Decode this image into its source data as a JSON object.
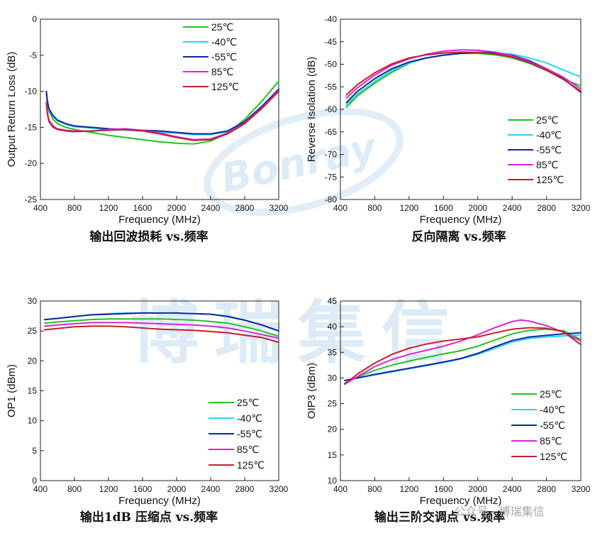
{
  "colors": {
    "25C": "#22c322",
    "-40C": "#28d4ef",
    "-55C": "#1226a2",
    "85C": "#d824d8",
    "125C": "#c81e2a",
    "watermark": "#2a87c9"
  },
  "watermark": {
    "logo_text": "Bonray",
    "big_text": "博瑞集信",
    "footer_text": "公众号 · 博瑞集信"
  },
  "chart_data": [
    {
      "type": "line",
      "caption": "输出回波损耗 vs.频率",
      "xlabel": "Frequency (MHz)",
      "ylabel": "Output Return Loss (dB)",
      "xlim": [
        400,
        3200
      ],
      "ylim": [
        -25,
        0
      ],
      "xticks": [
        400,
        800,
        1200,
        1600,
        2000,
        2400,
        2800,
        3200
      ],
      "yticks": [
        -25,
        -20,
        -15,
        -10,
        -5,
        0
      ],
      "legend_position": "top-right",
      "series": [
        {
          "name": "25℃",
          "color_key": "25C",
          "x": [
            470,
            480,
            500,
            550,
            600,
            700,
            800,
            1000,
            1200,
            1400,
            1600,
            1800,
            2000,
            2200,
            2400,
            2600,
            2800,
            3000,
            3200
          ],
          "y": [
            -10.2,
            -11.6,
            -12.8,
            -13.9,
            -14.5,
            -15.0,
            -15.3,
            -15.7,
            -16.1,
            -16.4,
            -16.7,
            -17.0,
            -17.2,
            -17.3,
            -16.9,
            -15.8,
            -13.9,
            -11.4,
            -8.6
          ]
        },
        {
          "name": "-40℃",
          "color_key": "-40C",
          "x": [
            470,
            480,
            500,
            550,
            600,
            700,
            800,
            1000,
            1200,
            1400,
            1600,
            1800,
            2000,
            2200,
            2400,
            2600,
            2800,
            3000,
            3200
          ],
          "y": [
            -10.0,
            -11.3,
            -12.5,
            -13.5,
            -14.1,
            -14.6,
            -14.9,
            -15.1,
            -15.3,
            -15.4,
            -15.5,
            -15.7,
            -15.8,
            -16.0,
            -16.0,
            -15.6,
            -14.3,
            -12.2,
            -9.8
          ]
        },
        {
          "name": "-55℃",
          "color_key": "-55C",
          "x": [
            470,
            480,
            500,
            550,
            600,
            700,
            800,
            1000,
            1200,
            1400,
            1600,
            1800,
            2000,
            2200,
            2400,
            2600,
            2800,
            3000,
            3200
          ],
          "y": [
            -10.0,
            -11.2,
            -12.4,
            -13.4,
            -14.0,
            -14.5,
            -14.8,
            -15.0,
            -15.2,
            -15.3,
            -15.4,
            -15.5,
            -15.7,
            -15.9,
            -15.9,
            -15.5,
            -14.2,
            -12.1,
            -9.7
          ]
        },
        {
          "name": "85℃",
          "color_key": "85C",
          "x": [
            470,
            480,
            500,
            550,
            600,
            700,
            800,
            1000,
            1200,
            1400,
            1600,
            1800,
            2000,
            2200,
            2400,
            2600,
            2800,
            3000,
            3200
          ],
          "y": [
            -11.5,
            -12.8,
            -14.0,
            -14.8,
            -15.2,
            -15.4,
            -15.5,
            -15.5,
            -15.3,
            -15.2,
            -15.4,
            -15.8,
            -16.3,
            -16.7,
            -16.6,
            -15.8,
            -14.4,
            -12.3,
            -9.9
          ]
        },
        {
          "name": "125℃",
          "color_key": "125C",
          "x": [
            470,
            480,
            500,
            550,
            600,
            700,
            800,
            1000,
            1200,
            1400,
            1600,
            1800,
            2000,
            2200,
            2400,
            2600,
            2800,
            3000,
            3200
          ],
          "y": [
            -11.7,
            -13.0,
            -14.2,
            -15.0,
            -15.3,
            -15.5,
            -15.6,
            -15.5,
            -15.4,
            -15.3,
            -15.5,
            -15.9,
            -16.4,
            -16.8,
            -16.7,
            -15.9,
            -14.5,
            -12.4,
            -10.0
          ]
        }
      ]
    },
    {
      "type": "line",
      "caption": "反向隔离 vs.频率",
      "xlabel": "Frequency (MHz)",
      "ylabel": "Reverse Isolation (dB)",
      "xlim": [
        400,
        3200
      ],
      "ylim": [
        -80,
        -40
      ],
      "xticks": [
        400,
        800,
        1200,
        1600,
        2000,
        2400,
        2800,
        3200
      ],
      "yticks": [
        -80,
        -75,
        -70,
        -65,
        -60,
        -55,
        -50,
        -45,
        -40
      ],
      "legend_position": "bottom-right",
      "series": [
        {
          "name": "25℃",
          "color_key": "25C",
          "x": [
            470,
            600,
            800,
            1000,
            1200,
            1400,
            1600,
            1800,
            2000,
            2200,
            2400,
            2600,
            2800,
            3000,
            3200
          ],
          "y": [
            -59.5,
            -57.0,
            -54.2,
            -51.8,
            -49.8,
            -48.6,
            -47.9,
            -47.6,
            -47.6,
            -47.9,
            -48.6,
            -49.8,
            -51.4,
            -53.3,
            -54.8
          ]
        },
        {
          "name": "-40℃",
          "color_key": "-40C",
          "x": [
            470,
            600,
            800,
            1000,
            1200,
            1400,
            1600,
            1800,
            2000,
            2200,
            2400,
            2600,
            2800,
            3000,
            3200
          ],
          "y": [
            -59.0,
            -56.6,
            -53.8,
            -51.4,
            -49.7,
            -48.6,
            -47.9,
            -47.5,
            -47.3,
            -47.4,
            -47.8,
            -48.6,
            -49.7,
            -51.3,
            -52.8
          ]
        },
        {
          "name": "-55℃",
          "color_key": "-55C",
          "x": [
            470,
            600,
            800,
            1000,
            1200,
            1400,
            1600,
            1800,
            2000,
            2200,
            2400,
            2600,
            2800,
            3000,
            3200
          ],
          "y": [
            -58.5,
            -56.0,
            -53.2,
            -51.0,
            -49.5,
            -48.6,
            -48.0,
            -47.6,
            -47.4,
            -47.5,
            -48.0,
            -49.2,
            -51.0,
            -53.3,
            -56.2
          ]
        },
        {
          "name": "85℃",
          "color_key": "85C",
          "x": [
            470,
            600,
            800,
            1000,
            1200,
            1400,
            1600,
            1800,
            2000,
            2200,
            2400,
            2600,
            2800,
            3000,
            3200
          ],
          "y": [
            -57.5,
            -55.2,
            -52.4,
            -50.2,
            -48.8,
            -47.8,
            -47.1,
            -46.8,
            -46.9,
            -47.3,
            -48.1,
            -49.4,
            -51.0,
            -52.9,
            -55.5
          ]
        },
        {
          "name": "125℃",
          "color_key": "125C",
          "x": [
            470,
            600,
            800,
            1000,
            1200,
            1400,
            1600,
            1800,
            2000,
            2200,
            2400,
            2600,
            2800,
            3000,
            3200
          ],
          "y": [
            -56.8,
            -54.5,
            -51.9,
            -49.9,
            -48.6,
            -47.9,
            -47.5,
            -47.3,
            -47.4,
            -47.7,
            -48.4,
            -49.6,
            -51.3,
            -53.4,
            -56.0
          ]
        }
      ]
    },
    {
      "type": "line",
      "caption": "输出1dB 压缩点 vs.频率",
      "xlabel": "Frequency (MHz)",
      "ylabel": "OP1 (dBm)",
      "xlim": [
        400,
        3200
      ],
      "ylim": [
        0,
        30
      ],
      "xticks": [
        400,
        800,
        1200,
        1600,
        2000,
        2400,
        2800,
        3200
      ],
      "yticks": [
        0,
        5,
        10,
        15,
        20,
        25,
        30
      ],
      "legend_position": "bottom-right",
      "series": [
        {
          "name": "25℃",
          "color_key": "25C",
          "x": [
            450,
            600,
            800,
            1000,
            1200,
            1400,
            1600,
            1800,
            2000,
            2200,
            2400,
            2600,
            2800,
            3000,
            3200
          ],
          "y": [
            26.3,
            26.5,
            26.7,
            26.9,
            27.0,
            27.0,
            27.0,
            27.0,
            26.9,
            26.8,
            26.6,
            26.3,
            25.7,
            25.0,
            24.1
          ]
        },
        {
          "name": "-40℃",
          "color_key": "-40C",
          "x": [
            450,
            600,
            800,
            1000,
            1200,
            1400,
            1600,
            1800,
            2000,
            2200,
            2400,
            2600,
            2800,
            3000,
            3200
          ],
          "y": [
            26.9,
            27.1,
            27.4,
            27.7,
            27.9,
            28.0,
            28.0,
            28.0,
            28.0,
            27.9,
            27.8,
            27.5,
            26.8,
            26.0,
            25.0
          ]
        },
        {
          "name": "-55℃",
          "color_key": "-55C",
          "x": [
            450,
            600,
            800,
            1000,
            1200,
            1400,
            1600,
            1800,
            2000,
            2200,
            2400,
            2600,
            2800,
            3000,
            3200
          ],
          "y": [
            26.9,
            27.1,
            27.4,
            27.7,
            27.8,
            27.9,
            28.0,
            28.0,
            28.0,
            27.9,
            27.8,
            27.4,
            26.8,
            26.0,
            25.0
          ]
        },
        {
          "name": "85℃",
          "color_key": "85C",
          "x": [
            450,
            600,
            800,
            1000,
            1200,
            1400,
            1600,
            1800,
            2000,
            2200,
            2400,
            2600,
            2800,
            3000,
            3200
          ],
          "y": [
            25.8,
            26.0,
            26.2,
            26.4,
            26.4,
            26.4,
            26.3,
            26.2,
            26.1,
            26.0,
            25.8,
            25.5,
            25.0,
            24.4,
            23.8
          ]
        },
        {
          "name": "125℃",
          "color_key": "125C",
          "x": [
            450,
            600,
            800,
            1000,
            1200,
            1400,
            1600,
            1800,
            2000,
            2200,
            2400,
            2600,
            2800,
            3000,
            3200
          ],
          "y": [
            25.2,
            25.4,
            25.7,
            25.8,
            25.8,
            25.7,
            25.5,
            25.3,
            25.2,
            25.1,
            24.9,
            24.7,
            24.3,
            23.9,
            23.1
          ]
        }
      ]
    },
    {
      "type": "line",
      "caption": "输出三阶交调点 vs.频率",
      "xlabel": "Frequency (MHz)",
      "ylabel": "OIP3 (dBm)",
      "xlim": [
        400,
        3200
      ],
      "ylim": [
        10,
        45
      ],
      "xticks": [
        400,
        800,
        1200,
        1600,
        2000,
        2400,
        2800,
        3200
      ],
      "yticks": [
        10,
        15,
        20,
        25,
        30,
        35,
        40,
        45
      ],
      "legend_position": "bottom-right",
      "series": [
        {
          "name": "25℃",
          "color_key": "25C",
          "x": [
            450,
            600,
            800,
            1000,
            1200,
            1400,
            1600,
            1800,
            2000,
            2200,
            2400,
            2600,
            2800,
            3000,
            3200
          ],
          "y": [
            29.0,
            30.2,
            31.5,
            32.5,
            33.3,
            34.0,
            34.7,
            35.3,
            36.2,
            37.4,
            38.6,
            39.3,
            39.5,
            39.2,
            37.5
          ]
        },
        {
          "name": "-40℃",
          "color_key": "-40C",
          "x": [
            450,
            600,
            800,
            1000,
            1200,
            1400,
            1600,
            1800,
            2000,
            2200,
            2400,
            2600,
            2800,
            3000,
            3200
          ],
          "y": [
            29.5,
            30.0,
            30.6,
            31.2,
            31.8,
            32.4,
            33.0,
            33.7,
            34.6,
            35.8,
            37.0,
            37.7,
            38.0,
            38.2,
            38.4
          ]
        },
        {
          "name": "-55℃",
          "color_key": "-55C",
          "x": [
            450,
            600,
            800,
            1000,
            1200,
            1400,
            1600,
            1800,
            2000,
            2200,
            2400,
            2600,
            2800,
            3000,
            3200
          ],
          "y": [
            29.5,
            30.0,
            30.7,
            31.3,
            31.9,
            32.5,
            33.1,
            33.8,
            34.8,
            36.1,
            37.3,
            38.0,
            38.3,
            38.6,
            38.8
          ]
        },
        {
          "name": "85℃",
          "color_key": "85C",
          "x": [
            450,
            600,
            800,
            1000,
            1200,
            1400,
            1600,
            1800,
            2000,
            2200,
            2400,
            2500,
            2600,
            2800,
            3000,
            3200
          ],
          "y": [
            28.8,
            30.3,
            32.2,
            33.6,
            34.6,
            35.4,
            36.2,
            37.2,
            38.4,
            39.8,
            41.0,
            41.3,
            41.1,
            40.2,
            38.9,
            37.2
          ]
        },
        {
          "name": "125℃",
          "color_key": "125C",
          "x": [
            450,
            600,
            800,
            1000,
            1200,
            1400,
            1600,
            1800,
            2000,
            2200,
            2400,
            2600,
            2800,
            3000,
            3200
          ],
          "y": [
            28.8,
            30.8,
            32.9,
            34.6,
            35.8,
            36.6,
            37.2,
            37.6,
            38.0,
            38.8,
            39.5,
            39.8,
            39.7,
            39.0,
            36.5
          ]
        }
      ]
    }
  ]
}
